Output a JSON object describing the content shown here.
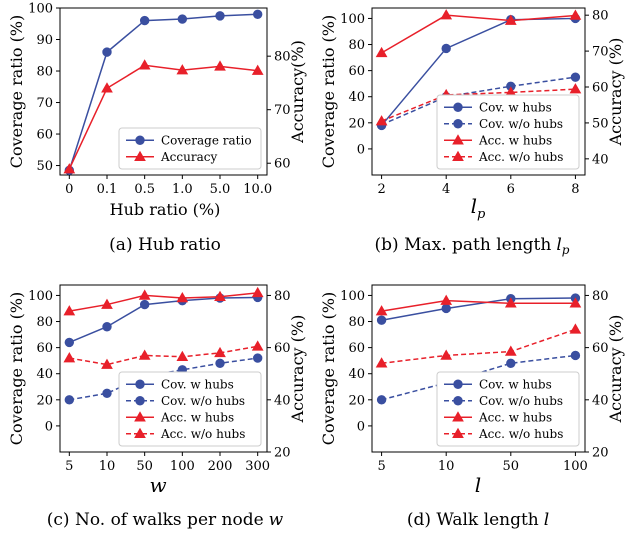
{
  "colors": {
    "coverage": "#3a4fa0",
    "accuracy": "#e8202a"
  },
  "chart_data": [
    {
      "type": "line",
      "caption": "(a)  Hub ratio",
      "xlabel": "Hub ratio (%)",
      "ylabel": "Coverage ratio (%)",
      "y2label": "Accuracy(%)",
      "categories": [
        "0",
        "0.1",
        "0.5",
        "1.0",
        "5.0",
        "10.0"
      ],
      "ylim": [
        47,
        100
      ],
      "yticks": [
        50,
        60,
        70,
        80,
        90,
        100
      ],
      "y2lim": [
        57.8,
        89
      ],
      "y2ticks": [
        60,
        70,
        80
      ],
      "legend": "lower-right",
      "series": [
        {
          "name": "Coverage ratio",
          "axis": "left",
          "style": "solid",
          "marker": "circle",
          "color": "coverage",
          "values": [
            48.5,
            86,
            96,
            96.5,
            97.5,
            98
          ]
        },
        {
          "name": "Accuracy",
          "axis": "right",
          "style": "solid",
          "marker": "triangle",
          "color": "accuracy",
          "values": [
            58.9,
            74,
            78.3,
            77.4,
            78.1,
            77.3
          ]
        }
      ]
    },
    {
      "type": "line",
      "caption": "(b)  Max. path length",
      "caption_var": "l",
      "caption_sub": "p",
      "xlabel": "l",
      "xlabel_sub": "p",
      "ylabel": "Coverage ratio (%)",
      "y2label": "Accuracy (%)",
      "categories": [
        "2",
        "4",
        "6",
        "8"
      ],
      "ylim": [
        -20,
        108
      ],
      "yticks": [
        0,
        20,
        40,
        60,
        80,
        100
      ],
      "y2lim": [
        35.5,
        82
      ],
      "y2ticks": [
        40,
        50,
        60,
        70,
        80
      ],
      "legend": "lower-right",
      "series": [
        {
          "name": "Cov. w hubs",
          "axis": "left",
          "style": "solid",
          "marker": "circle",
          "color": "coverage",
          "values": [
            18,
            77,
            99,
            100
          ]
        },
        {
          "name": "Cov. w/o hubs",
          "axis": "left",
          "style": "dashed",
          "marker": "circle",
          "color": "coverage",
          "values": [
            18.5,
            40,
            48,
            55
          ]
        },
        {
          "name": "Acc. w hubs",
          "axis": "right",
          "style": "solid",
          "marker": "triangle",
          "color": "accuracy",
          "values": [
            69.5,
            80,
            78.5,
            79.9
          ]
        },
        {
          "name": "Acc. w/o hubs",
          "axis": "right",
          "style": "dashed",
          "marker": "triangle",
          "color": "accuracy",
          "values": [
            50.5,
            57.8,
            58.5,
            59.4
          ]
        }
      ]
    },
    {
      "type": "line",
      "caption": "(c)  No. of walks per node",
      "caption_var": "w",
      "xlabel": "w",
      "ylabel": "Coverage ratio (%)",
      "y2label": "Accuracy (%)",
      "categories": [
        "5",
        "10",
        "50",
        "100",
        "200",
        "300"
      ],
      "ylim": [
        -20,
        108
      ],
      "yticks": [
        0,
        20,
        40,
        60,
        80,
        100
      ],
      "y2lim": [
        20,
        84
      ],
      "y2ticks": [
        20,
        40,
        60,
        80
      ],
      "legend": "lower-right",
      "series": [
        {
          "name": "Cov. w hubs",
          "axis": "left",
          "style": "solid",
          "marker": "circle",
          "color": "coverage",
          "values": [
            64,
            76,
            93,
            96,
            98,
            98.5
          ]
        },
        {
          "name": "Cov. w/o hubs",
          "axis": "left",
          "style": "dashed",
          "marker": "circle",
          "color": "coverage",
          "values": [
            20,
            25,
            38,
            43,
            48,
            52
          ]
        },
        {
          "name": "Acc. w hubs",
          "axis": "right",
          "style": "solid",
          "marker": "triangle",
          "color": "accuracy",
          "values": [
            74,
            76.5,
            80,
            79,
            79.5,
            81
          ]
        },
        {
          "name": "Acc. w/o hubs",
          "axis": "right",
          "style": "dashed",
          "marker": "triangle",
          "color": "accuracy",
          "values": [
            56,
            53.5,
            57,
            56.5,
            58,
            60.5
          ]
        }
      ]
    },
    {
      "type": "line",
      "caption": "(d)  Walk length",
      "caption_var": "l",
      "xlabel": "l",
      "ylabel": "Coverage ratio (%)",
      "y2label": "Accuracy (%)",
      "categories": [
        "5",
        "10",
        "50",
        "100"
      ],
      "ylim": [
        -20,
        108
      ],
      "yticks": [
        0,
        20,
        40,
        60,
        80,
        100
      ],
      "y2lim": [
        20,
        84
      ],
      "y2ticks": [
        20,
        40,
        60,
        80
      ],
      "legend": "lower-right",
      "series": [
        {
          "name": "Cov. w hubs",
          "axis": "left",
          "style": "solid",
          "marker": "circle",
          "color": "coverage",
          "values": [
            81,
            90,
            97.5,
            98
          ]
        },
        {
          "name": "Cov. w/o hubs",
          "axis": "left",
          "style": "dashed",
          "marker": "circle",
          "color": "coverage",
          "values": [
            20,
            33,
            48,
            54
          ]
        },
        {
          "name": "Acc. w hubs",
          "axis": "right",
          "style": "solid",
          "marker": "triangle",
          "color": "accuracy",
          "values": [
            74,
            78,
            77,
            77
          ]
        },
        {
          "name": "Acc. w/o hubs",
          "axis": "right",
          "style": "dashed",
          "marker": "triangle",
          "color": "accuracy",
          "values": [
            54,
            57,
            58.5,
            67
          ]
        }
      ]
    }
  ]
}
